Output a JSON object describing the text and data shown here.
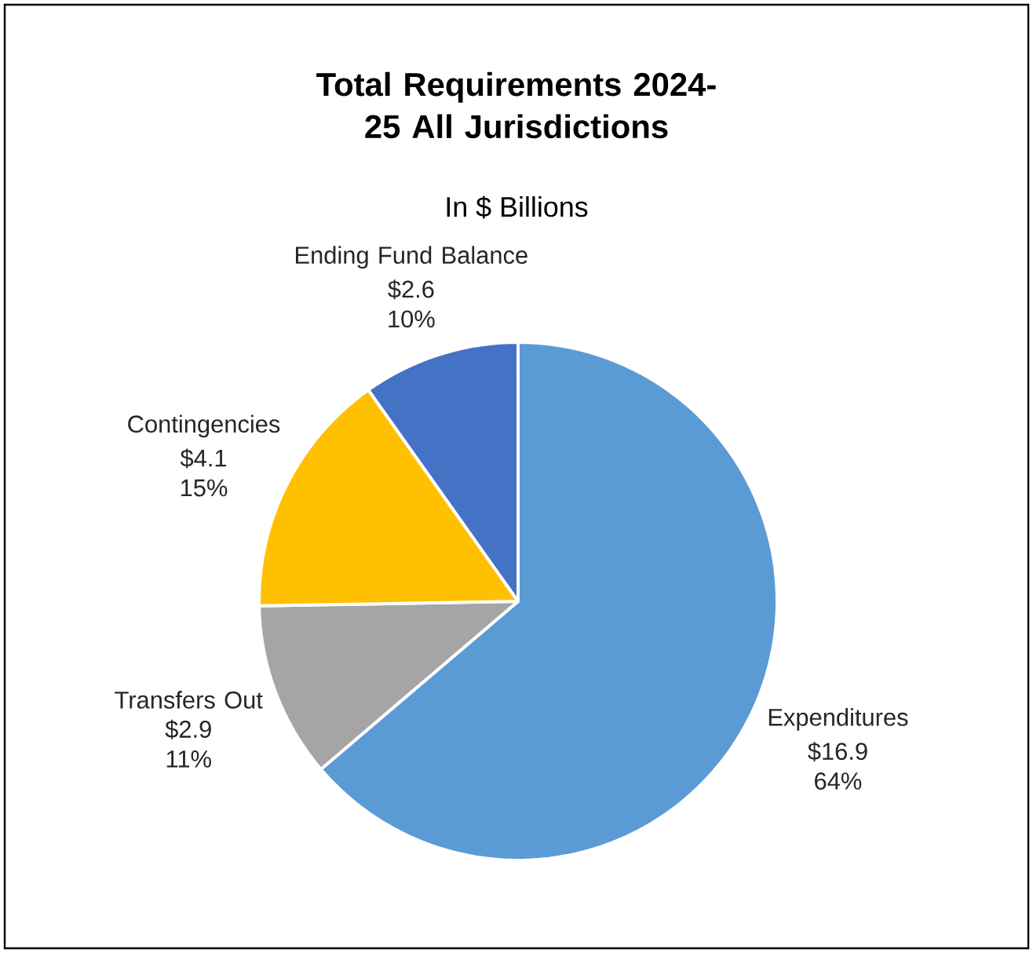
{
  "chart_data": {
    "type": "pie",
    "title": "Total Requirements 2024-25 All Jurisdictions",
    "subtitle": "In $ Billions",
    "categories": [
      "Expenditures",
      "Transfers Out",
      "Contingencies",
      "Ending Fund Balance"
    ],
    "values": [
      16.9,
      2.9,
      4.1,
      2.6
    ],
    "value_labels": [
      "$16.9 64%",
      "$2.9 11%",
      "$4.1 15%",
      "$2.6 10%"
    ],
    "colors": [
      "#5b9bd5",
      "#a5a5a5",
      "#ffc000",
      "#4472c4"
    ]
  }
}
